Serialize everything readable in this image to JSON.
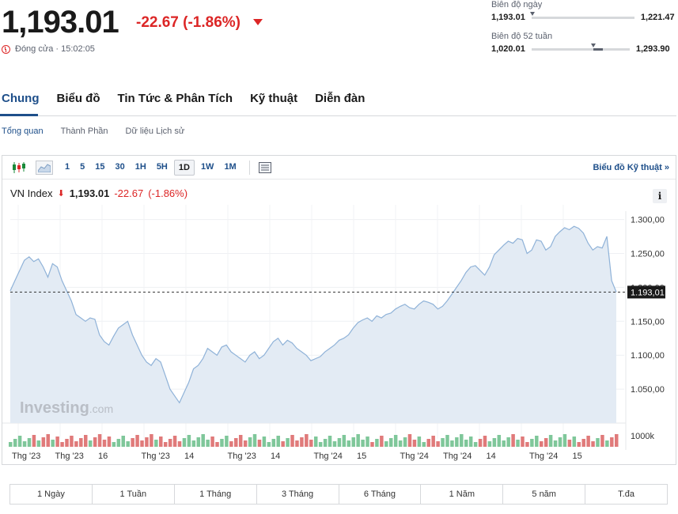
{
  "quote": {
    "price": "1,193.01",
    "change": "-22.67",
    "change_pct": "(-1.86%)",
    "status": "Đóng cửa · 15:02:05"
  },
  "ranges": {
    "day": {
      "title": "Biên độ ngày",
      "low": "1,193.01",
      "high": "1,221.47",
      "marker_fraction": 0.0
    },
    "week52": {
      "title": "Biên độ 52 tuần",
      "low": "1,020.01",
      "high": "1,293.90",
      "marker_fraction": 0.63,
      "fill_from": 0.63,
      "fill_to": 0.71
    }
  },
  "main_tabs": [
    "Chung",
    "Biểu đồ",
    "Tin Tức & Phân Tích",
    "Kỹ thuật",
    "Diễn đàn"
  ],
  "sub_tabs": [
    "Tổng quan",
    "Thành Phần",
    "Dữ liệu Lịch sử"
  ],
  "toolbar": {
    "intervals": [
      "1",
      "5",
      "15",
      "30",
      "1H",
      "5H",
      "1D",
      "1W",
      "1M"
    ],
    "active_interval": "1D",
    "tech_link": "Biểu đồ Kỹ thuật »"
  },
  "legend": {
    "name": "VN Index",
    "price": "1,193.01",
    "change": "-22.67",
    "change_pct": "(-1.86%)"
  },
  "info_label": "i",
  "watermark": {
    "brand": "Investing",
    "suffix": ".com"
  },
  "chart_data": {
    "type": "area",
    "y_ticks": [
      "1.300,00",
      "1.250,00",
      "1.200,00",
      "1.150,00",
      "1.100,00",
      "1.050,00"
    ],
    "y_range": [
      1000,
      1310
    ],
    "last_label": "1.193,01",
    "volume_label": "1000k",
    "x_labels": [
      "Thg '23",
      "Thg '23",
      "16",
      "Thg '23",
      "14",
      "Thg '23",
      "14",
      "Thg '24",
      "15",
      "Thg '24",
      "Thg '24",
      "14",
      "Thg '24",
      "15"
    ],
    "values": [
      1195,
      1210,
      1225,
      1240,
      1245,
      1238,
      1242,
      1230,
      1215,
      1235,
      1230,
      1210,
      1195,
      1180,
      1160,
      1155,
      1150,
      1155,
      1153,
      1130,
      1120,
      1115,
      1128,
      1140,
      1145,
      1150,
      1130,
      1115,
      1100,
      1090,
      1085,
      1095,
      1090,
      1070,
      1050,
      1040,
      1030,
      1045,
      1060,
      1080,
      1085,
      1095,
      1110,
      1105,
      1100,
      1112,
      1115,
      1105,
      1100,
      1095,
      1090,
      1100,
      1105,
      1095,
      1100,
      1110,
      1120,
      1125,
      1115,
      1122,
      1118,
      1110,
      1105,
      1100,
      1092,
      1095,
      1098,
      1105,
      1110,
      1115,
      1122,
      1125,
      1130,
      1140,
      1148,
      1152,
      1155,
      1150,
      1158,
      1155,
      1160,
      1162,
      1168,
      1172,
      1175,
      1170,
      1168,
      1175,
      1180,
      1178,
      1175,
      1168,
      1172,
      1180,
      1190,
      1200,
      1210,
      1222,
      1230,
      1232,
      1225,
      1218,
      1230,
      1248,
      1255,
      1262,
      1268,
      1265,
      1272,
      1270,
      1250,
      1255,
      1270,
      1268,
      1255,
      1260,
      1275,
      1282,
      1288,
      1285,
      1290,
      1287,
      1280,
      1265,
      1255,
      1260,
      1258,
      1275,
      1210,
      1193
    ]
  },
  "periods": [
    "1 Ngày",
    "1 Tuần",
    "1 Tháng",
    "3 Tháng",
    "6 Tháng",
    "1 Năm",
    "5 năm",
    "T.đa"
  ]
}
